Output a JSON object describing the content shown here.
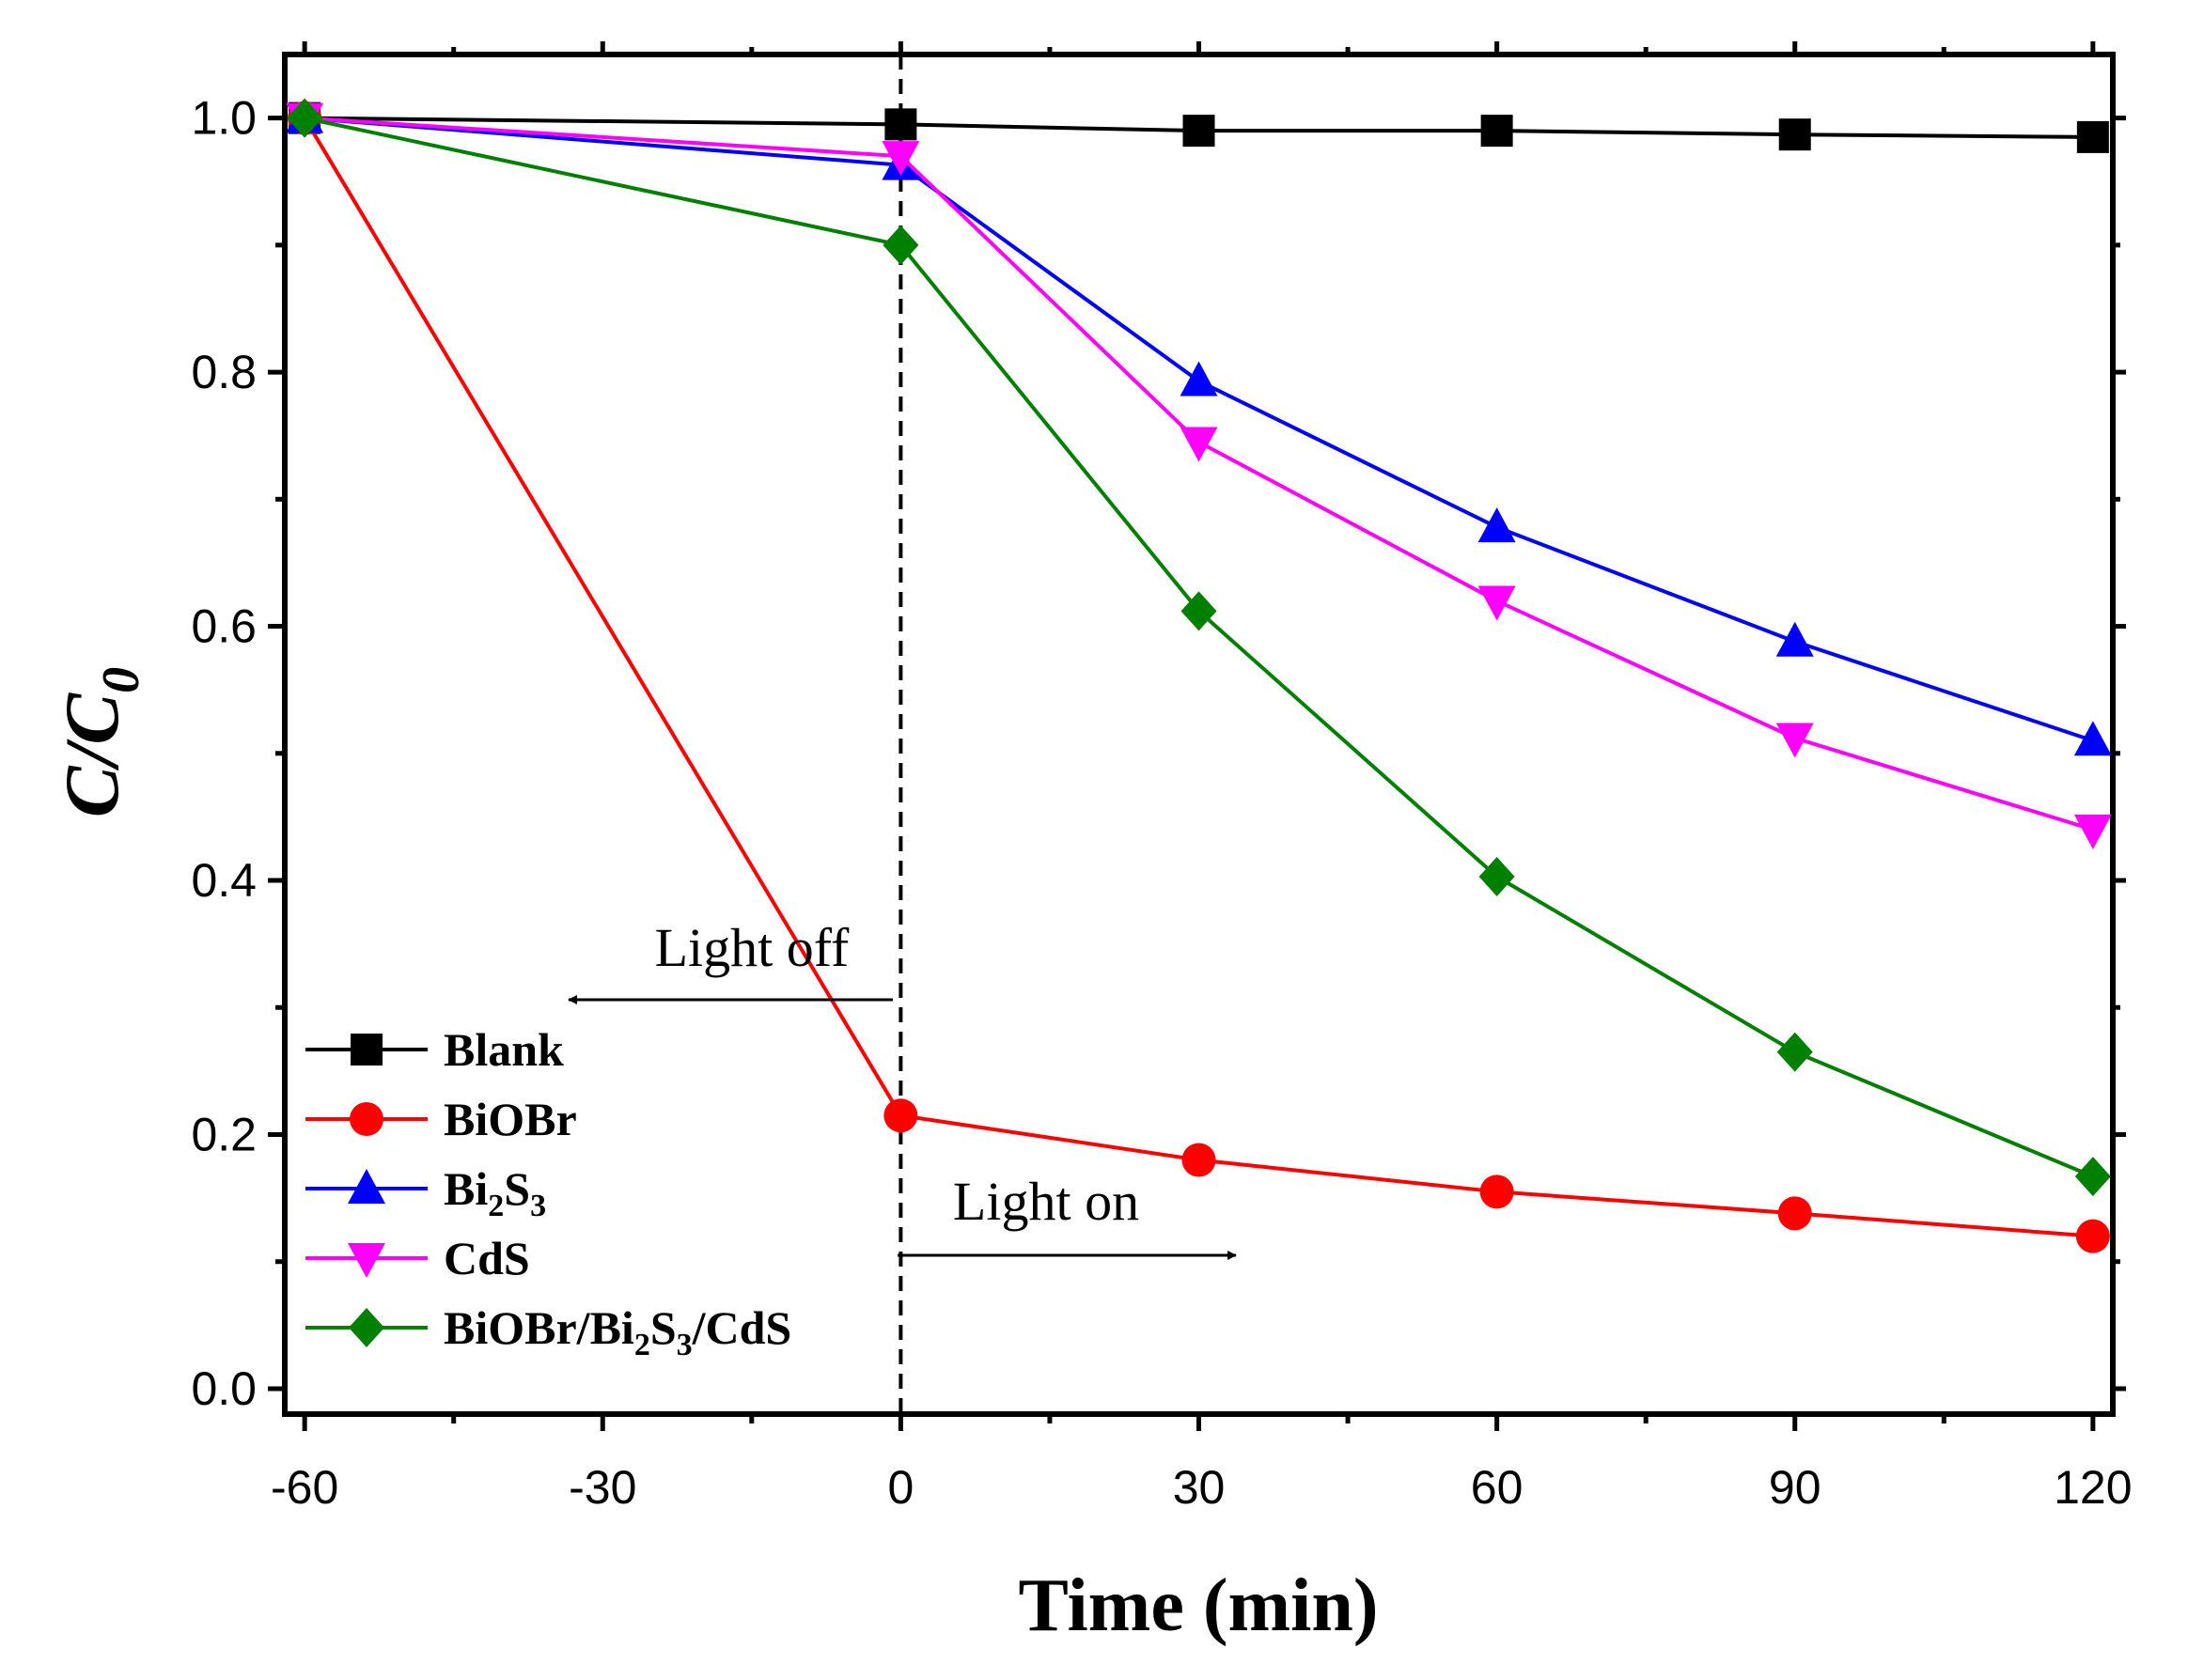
{
  "chart_data": {
    "type": "line",
    "title": "",
    "xlabel": "Time (min)",
    "ylabel": {
      "main": "C/C",
      "sub": "0"
    },
    "xlim": [
      -62,
      122
    ],
    "ylim": [
      -0.02,
      1.05
    ],
    "xticks": [
      -60,
      -30,
      0,
      30,
      60,
      90,
      120
    ],
    "xtick_labels": [
      "-60",
      "-30",
      "0",
      "30",
      "60",
      "90",
      "120"
    ],
    "yticks": [
      0.0,
      0.2,
      0.4,
      0.6,
      0.8,
      1.0
    ],
    "ytick_labels": [
      "0.0",
      "0.2",
      "0.4",
      "0.6",
      "0.8",
      "1.0"
    ],
    "x": [
      -60,
      0,
      30,
      60,
      90,
      120
    ],
    "series": [
      {
        "name": "Blank",
        "label_parts": [
          {
            "t": "Blank"
          }
        ],
        "color": "#000000",
        "marker": "square",
        "values": [
          1.0,
          0.995,
          0.99,
          0.99,
          0.987,
          0.985
        ]
      },
      {
        "name": "BiOBr",
        "label_parts": [
          {
            "t": "BiOBr"
          }
        ],
        "color": "#ff0000",
        "marker": "circle",
        "values": [
          1.0,
          0.215,
          0.18,
          0.155,
          0.138,
          0.12
        ]
      },
      {
        "name": "Bi2S3",
        "label_parts": [
          {
            "t": "Bi"
          },
          {
            "t": "2",
            "sub": true
          },
          {
            "t": "S"
          },
          {
            "t": "3",
            "sub": true
          }
        ],
        "color": "#0000ff",
        "marker": "triangle-up",
        "values": [
          1.0,
          0.963,
          0.793,
          0.678,
          0.588,
          0.51
        ]
      },
      {
        "name": "CdS",
        "label_parts": [
          {
            "t": "CdS"
          }
        ],
        "color": "#ff00ff",
        "marker": "triangle-down",
        "values": [
          1.0,
          0.97,
          0.745,
          0.62,
          0.512,
          0.44
        ]
      },
      {
        "name": "BiOBr/Bi2S3/CdS",
        "label_parts": [
          {
            "t": "BiOBr/Bi"
          },
          {
            "t": "2",
            "sub": true
          },
          {
            "t": "S"
          },
          {
            "t": "3",
            "sub": true
          },
          {
            "t": "/CdS"
          }
        ],
        "color": "#008000",
        "marker": "diamond",
        "values": [
          1.0,
          0.9,
          0.612,
          0.403,
          0.265,
          0.167
        ]
      }
    ],
    "legend_position": "bottom-left",
    "vertical_marker_x": 0,
    "annotations": [
      {
        "text": "Light off",
        "arrow": "left"
      },
      {
        "text": "Light on",
        "arrow": "right"
      }
    ]
  }
}
